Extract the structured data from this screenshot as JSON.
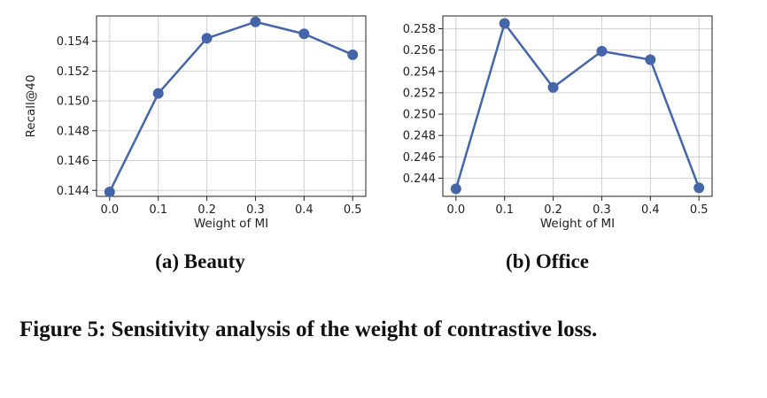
{
  "chart_data": [
    {
      "type": "line",
      "xlabel": "Weight of MI",
      "ylabel": "Recall@40",
      "x": [
        0.0,
        0.1,
        0.2,
        0.3,
        0.4,
        0.5
      ],
      "x_ticks": [
        "0.0",
        "0.1",
        "0.2",
        "0.3",
        "0.4",
        "0.5"
      ],
      "xlim": [
        -0.027,
        0.527
      ],
      "ylim": [
        0.1436,
        0.1557
      ],
      "y_ticks": [
        "0.144",
        "0.146",
        "0.148",
        "0.150",
        "0.152",
        "0.154"
      ],
      "y_tick_values": [
        0.144,
        0.146,
        0.148,
        0.15,
        0.152,
        0.154
      ],
      "series": [
        {
          "values": [
            0.1439,
            0.1505,
            0.1542,
            0.1553,
            0.1545,
            0.1531
          ],
          "color": "#4466a8"
        }
      ],
      "grid": true
    },
    {
      "type": "line",
      "xlabel": "Weight of MI",
      "ylabel": "Recall@40",
      "x": [
        0.0,
        0.1,
        0.2,
        0.3,
        0.4,
        0.5
      ],
      "x_ticks": [
        "0.0",
        "0.1",
        "0.2",
        "0.3",
        "0.4",
        "0.5"
      ],
      "xlim": [
        -0.027,
        0.527
      ],
      "ylim": [
        0.2423,
        0.2592
      ],
      "y_ticks": [
        "0.244",
        "0.246",
        "0.248",
        "0.250",
        "0.252",
        "0.254",
        "0.256",
        "0.258"
      ],
      "y_tick_values": [
        0.244,
        0.246,
        0.248,
        0.25,
        0.252,
        0.254,
        0.256,
        0.258
      ],
      "series": [
        {
          "values": [
            0.243,
            0.2585,
            0.2525,
            0.2559,
            0.2551,
            0.2431
          ],
          "color": "#4466a8"
        }
      ],
      "grid": true
    }
  ],
  "captions": {
    "sub_a": "(a) Beauty",
    "sub_b": "(b) Office",
    "figure": "Figure 5: Sensitivity analysis of the weight of contrastive loss."
  }
}
